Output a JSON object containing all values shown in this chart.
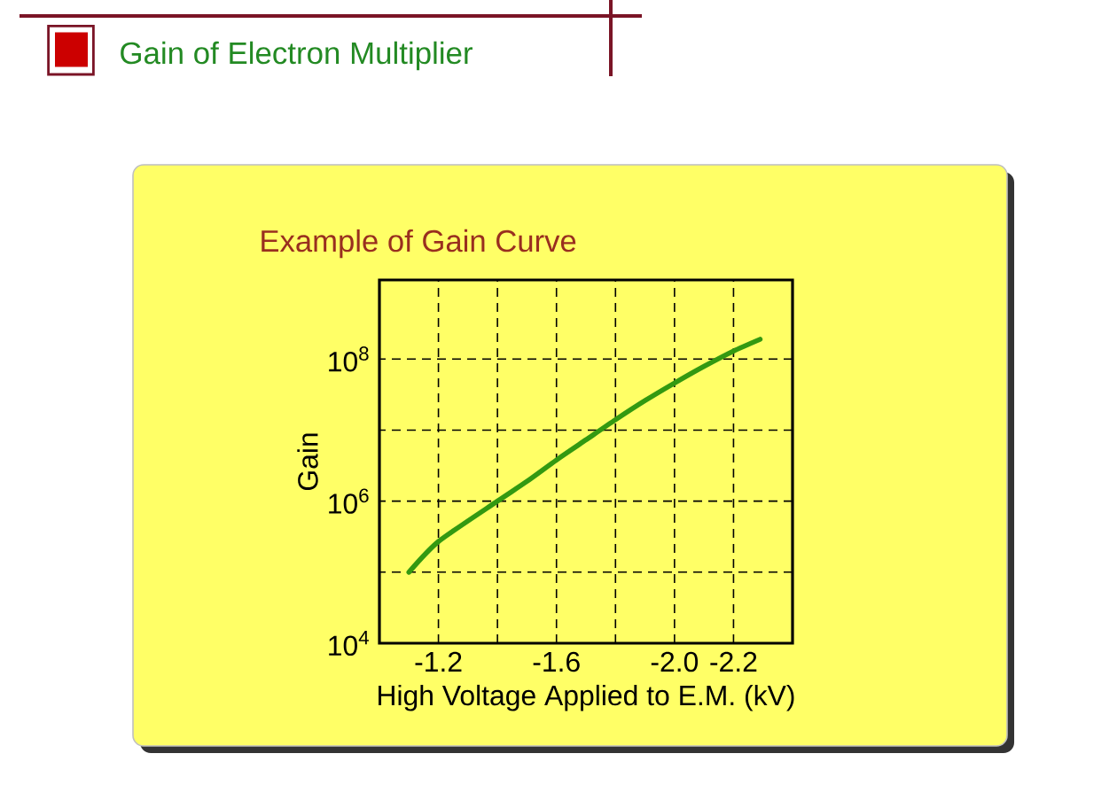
{
  "chart_data": {
    "type": "line",
    "title": "Gain of Electron Multiplier",
    "subtitle": "Example of Gain Curve",
    "xlabel": "High Voltage Applied to E.M. (kV)",
    "ylabel": "Gain",
    "x": [
      -1.1,
      -1.2,
      -1.4,
      -1.5,
      -1.6,
      -1.7,
      -1.8,
      -1.9,
      -2.0,
      -2.1,
      -2.2,
      -2.29
    ],
    "series": [
      {
        "color": "#339911",
        "values": [
          100000,
          270000,
          1000000,
          1900000,
          3800000,
          7300000,
          14000000,
          26000000,
          46000000,
          79000000,
          130000000,
          190000000
        ]
      }
    ],
    "log": "y",
    "xlim": [
      -1.0,
      -2.4
    ],
    "ylim": [
      10000,
      1300000000
    ],
    "xticks": [
      -1.2,
      {
        "value": -1.4,
        "label": null
      },
      -1.6,
      {
        "value": -1.8,
        "label": null
      },
      {
        "value": -2.0,
        "label": "-2.0"
      },
      -2.2
    ],
    "yticks": [
      {
        "value": 10000,
        "label": "10$^{4}$"
      },
      {
        "value": 100000,
        "label": null
      },
      {
        "value": 1000000,
        "label": "10$^{6}$"
      },
      {
        "value": 10000000,
        "label": null
      },
      {
        "value": 100000000,
        "label": "10$^{8}$"
      }
    ],
    "grid": true,
    "line_style": "solid"
  }
}
